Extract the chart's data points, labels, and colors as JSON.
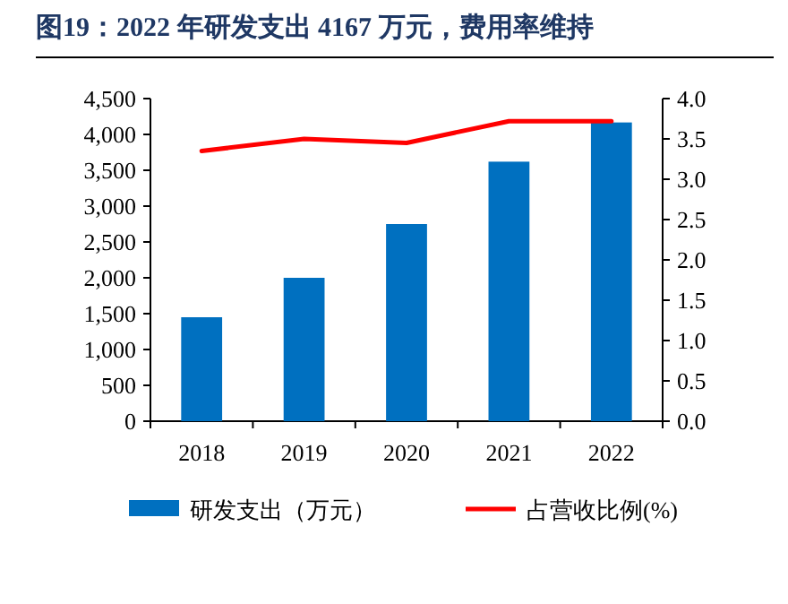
{
  "chart_data": {
    "type": "bar",
    "title": "图19：2022 年研发支出 4167 万元，费用率维持",
    "categories": [
      "2018",
      "2019",
      "2020",
      "2021",
      "2022"
    ],
    "series": [
      {
        "name": "研发支出（万元）",
        "color": "#0070c0",
        "values": [
          1450,
          2000,
          2750,
          3620,
          4167
        ]
      },
      {
        "name": "占营收比例(%)",
        "type": "line",
        "axis": "y2",
        "color": "#ff0000",
        "values": [
          3.35,
          3.5,
          3.45,
          3.72,
          3.72
        ]
      }
    ],
    "ylim": [
      0,
      4500
    ],
    "yticks": [
      0,
      {
        "value": 500,
        "label": "500"
      },
      {
        "value": 1000,
        "label": "1,000"
      },
      {
        "value": 1500,
        "label": "1,500"
      },
      {
        "value": 2000,
        "label": "2,000"
      },
      {
        "value": 2500,
        "label": "2,500"
      },
      {
        "value": 3000,
        "label": "3,000"
      },
      {
        "value": 3500,
        "label": "3,500"
      },
      {
        "value": 4000,
        "label": "4,000"
      },
      {
        "value": 4500,
        "label": "4,500"
      }
    ],
    "y2lim": [
      0,
      4
    ],
    "y2ticks": [
      {
        "value": 0,
        "label": "0.0"
      },
      0.5,
      {
        "value": 1,
        "label": "1.0"
      },
      1.5,
      {
        "value": 2,
        "label": "2.0"
      },
      2.5,
      {
        "value": 3,
        "label": "3.0"
      },
      3.5,
      {
        "value": 4,
        "label": "4.0"
      }
    ],
    "grid": false,
    "legend": "bottom"
  }
}
